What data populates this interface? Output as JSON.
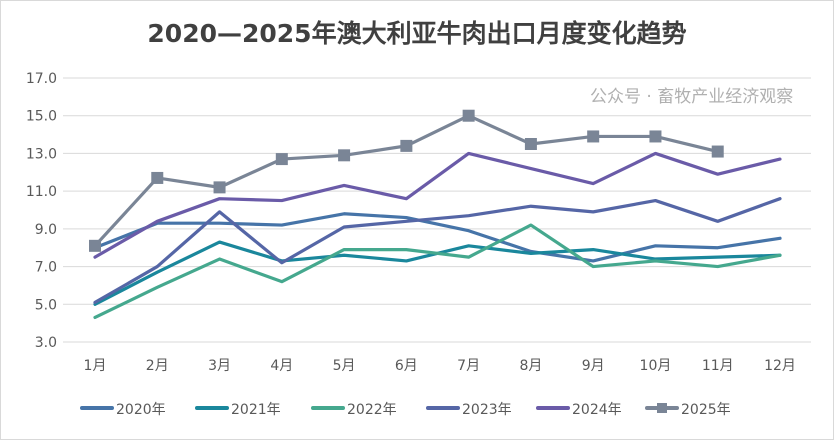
{
  "chart_data": {
    "type": "line",
    "title": "2020—2025年澳大利亚牛肉出口月度变化趋势",
    "xlabel": "",
    "ylabel": "",
    "categories": [
      "1月",
      "2月",
      "3月",
      "4月",
      "5月",
      "6月",
      "7月",
      "8月",
      "9月",
      "10月",
      "11月",
      "12月"
    ],
    "ylim": [
      3.0,
      17.0
    ],
    "yticks": [
      "3.0",
      "5.0",
      "7.0",
      "9.0",
      "11.0",
      "13.0",
      "15.0",
      "17.0"
    ],
    "grid": true,
    "legend": "bottom",
    "series": [
      {
        "name": "2020年",
        "color": "#4674a8",
        "marker": false,
        "values": [
          8.0,
          9.3,
          9.3,
          9.2,
          9.8,
          9.6,
          8.9,
          7.8,
          7.3,
          8.1,
          8.0,
          8.5
        ]
      },
      {
        "name": "2021年",
        "color": "#1a879c",
        "marker": false,
        "values": [
          5.0,
          6.7,
          8.3,
          7.3,
          7.6,
          7.3,
          8.1,
          7.7,
          7.9,
          7.4,
          7.5,
          7.6
        ]
      },
      {
        "name": "2022年",
        "color": "#45a88e",
        "marker": false,
        "values": [
          4.3,
          5.9,
          7.4,
          6.2,
          7.9,
          7.9,
          7.5,
          9.2,
          7.0,
          7.3,
          7.0,
          7.6
        ]
      },
      {
        "name": "2023年",
        "color": "#5566a6",
        "marker": false,
        "values": [
          5.1,
          7.0,
          9.9,
          7.2,
          9.1,
          9.4,
          9.7,
          10.2,
          9.9,
          10.5,
          9.4,
          10.6
        ]
      },
      {
        "name": "2024年",
        "color": "#6a5ba8",
        "marker": false,
        "values": [
          7.5,
          9.4,
          10.6,
          10.5,
          11.3,
          10.6,
          13.0,
          12.2,
          11.4,
          13.0,
          11.9,
          12.7
        ]
      },
      {
        "name": "2025年",
        "color": "#7a8596",
        "marker": true,
        "values": [
          8.1,
          11.7,
          11.2,
          12.7,
          12.9,
          13.4,
          15.0,
          13.5,
          13.9,
          13.9,
          13.1,
          null
        ]
      }
    ]
  },
  "watermark": "公众号 · 畜牧产业经济观察"
}
